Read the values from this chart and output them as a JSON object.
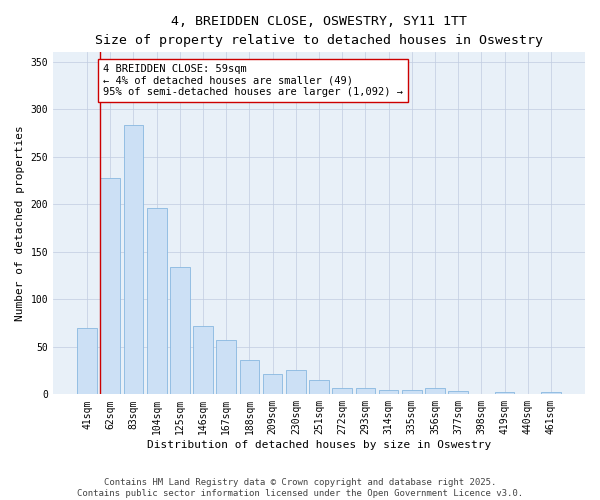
{
  "title_line1": "4, BREIDDEN CLOSE, OSWESTRY, SY11 1TT",
  "title_line2": "Size of property relative to detached houses in Oswestry",
  "xlabel": "Distribution of detached houses by size in Oswestry",
  "ylabel": "Number of detached properties",
  "categories": [
    "41sqm",
    "62sqm",
    "83sqm",
    "104sqm",
    "125sqm",
    "146sqm",
    "167sqm",
    "188sqm",
    "209sqm",
    "230sqm",
    "251sqm",
    "272sqm",
    "293sqm",
    "314sqm",
    "335sqm",
    "356sqm",
    "377sqm",
    "398sqm",
    "419sqm",
    "440sqm",
    "461sqm"
  ],
  "values": [
    70,
    228,
    284,
    196,
    134,
    72,
    57,
    36,
    21,
    26,
    15,
    7,
    7,
    5,
    5,
    7,
    4,
    0,
    2,
    0,
    2
  ],
  "bar_color": "#cce0f5",
  "bar_edge_color": "#88b8e0",
  "marker_line_color": "#cc0000",
  "annotation_text": "4 BREIDDEN CLOSE: 59sqm\n← 4% of detached houses are smaller (49)\n95% of semi-detached houses are larger (1,092) →",
  "annotation_box_color": "#ffffff",
  "annotation_box_edge_color": "#cc0000",
  "ylim": [
    0,
    360
  ],
  "yticks": [
    0,
    50,
    100,
    150,
    200,
    250,
    300,
    350
  ],
  "footer_text": "Contains HM Land Registry data © Crown copyright and database right 2025.\nContains public sector information licensed under the Open Government Licence v3.0.",
  "background_color": "#ffffff",
  "plot_bg_color": "#e8f0f8",
  "title_fontsize": 9.5,
  "subtitle_fontsize": 8.5,
  "axis_label_fontsize": 8,
  "tick_fontsize": 7,
  "annotation_fontsize": 7.5,
  "footer_fontsize": 6.5
}
